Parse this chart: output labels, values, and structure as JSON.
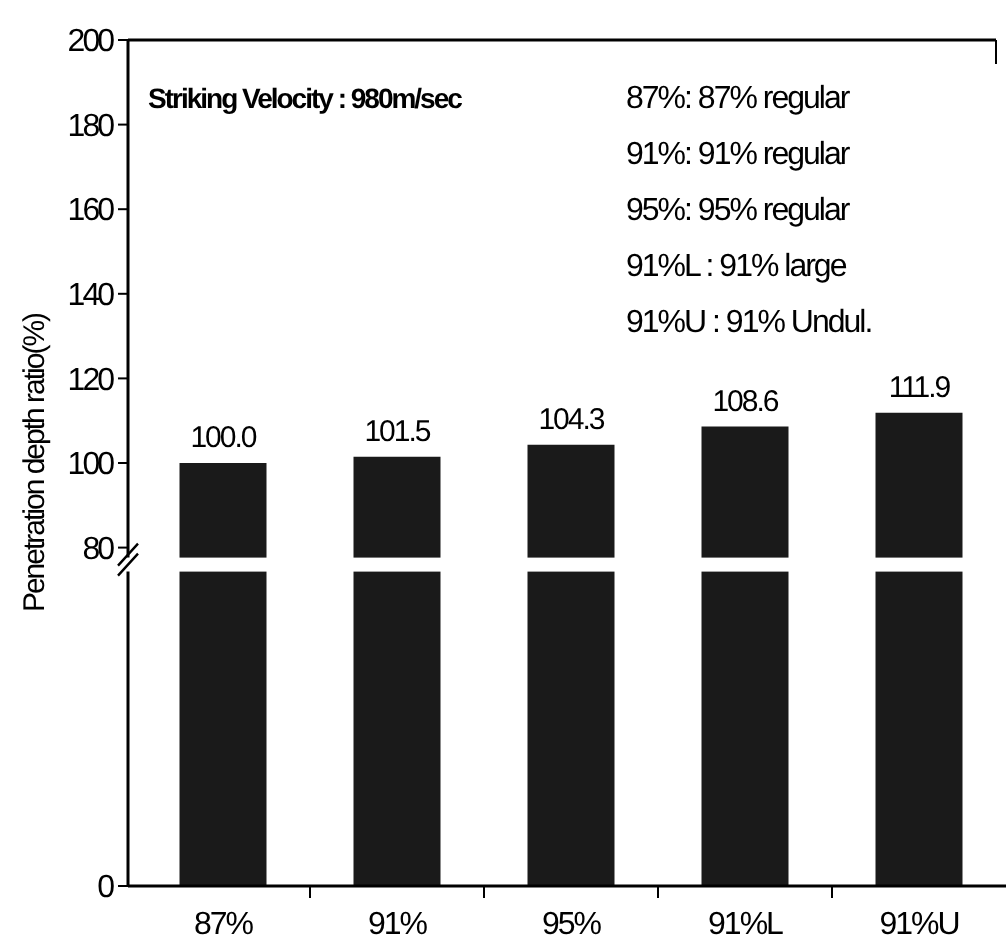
{
  "chart_data": {
    "type": "bar",
    "ylabel": "Penetration depth ratio(%)",
    "categories": [
      "87%",
      "91%",
      "95%",
      "91%L",
      "91%U"
    ],
    "values": [
      100.0,
      101.5,
      104.3,
      108.6,
      111.9
    ],
    "value_labels": [
      "100.0",
      "101.5",
      "104.3",
      "108.6",
      "111.9"
    ],
    "color": "#1a1a1a",
    "ylim": [
      0,
      200
    ],
    "yticks": [
      0,
      80,
      100,
      120,
      140,
      160,
      180,
      200
    ],
    "grid": false,
    "annotations": [
      "Striking Velocity : 980m/sec",
      "87%: 87% regular",
      "91%: 91% regular",
      "95%: 95% regular",
      "91%L : 91% large",
      "91%U : 91% Undul."
    ]
  }
}
